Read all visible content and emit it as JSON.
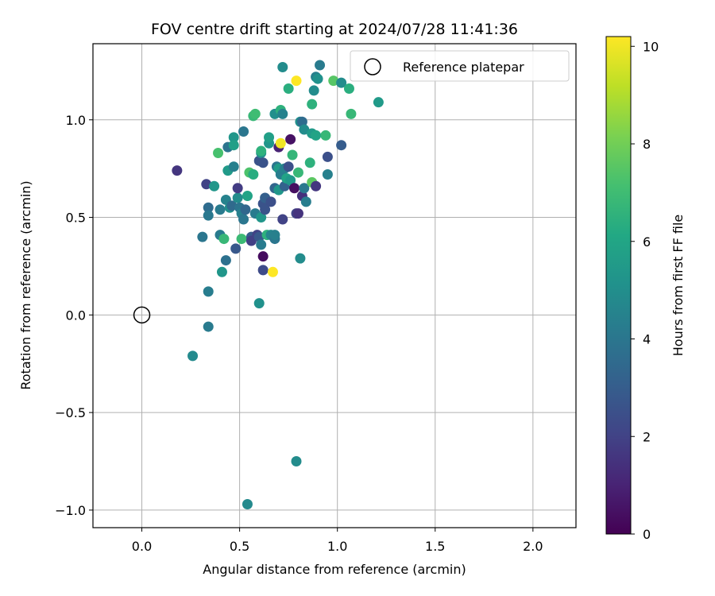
{
  "chart_data": {
    "type": "scatter",
    "title": "FOV centre drift starting at 2024/07/28 11:41:36",
    "xlabel": "Angular distance from reference (arcmin)",
    "ylabel": "Rotation from reference (arcmin)",
    "xlim": [
      -0.25,
      2.22
    ],
    "ylim": [
      -1.09,
      1.39
    ],
    "xticks": [
      0.0,
      0.5,
      1.0,
      1.5,
      2.0
    ],
    "xtick_labels": [
      "0.0",
      "0.5",
      "1.0",
      "1.5",
      "2.0"
    ],
    "yticks": [
      -1.0,
      -0.5,
      0.0,
      0.5,
      1.0
    ],
    "ytick_labels": [
      "−1.0",
      "−0.5",
      "0.0",
      "0.5",
      "1.0"
    ],
    "grid": true,
    "legend": {
      "placement": "top-right",
      "label": "Reference platepar"
    },
    "reference_point": {
      "x": 0.0,
      "y": 0.0
    },
    "colorbar": {
      "label": "Hours from first FF file",
      "range": [
        0,
        10.2
      ],
      "ticks": [
        0,
        2,
        4,
        6,
        8,
        10
      ],
      "colormap": "viridis"
    },
    "points": [
      [
        0.18,
        0.74,
        1.6
      ],
      [
        0.33,
        0.67,
        2.0
      ],
      [
        0.34,
        0.55,
        3.6
      ],
      [
        0.34,
        0.51,
        4.1
      ],
      [
        0.37,
        0.66,
        5.3
      ],
      [
        0.39,
        0.83,
        7.2
      ],
      [
        0.4,
        0.54,
        4.2
      ],
      [
        0.4,
        0.41,
        4.2
      ],
      [
        0.41,
        0.22,
        5.3
      ],
      [
        0.42,
        0.39,
        6.8
      ],
      [
        0.43,
        0.28,
        3.8
      ],
      [
        0.43,
        0.59,
        4.5
      ],
      [
        0.44,
        0.86,
        3.9
      ],
      [
        0.44,
        0.74,
        5.5
      ],
      [
        0.45,
        0.55,
        5.0
      ],
      [
        0.46,
        0.56,
        3.5
      ],
      [
        0.47,
        0.91,
        5.3
      ],
      [
        0.47,
        0.87,
        5.7
      ],
      [
        0.47,
        0.76,
        4.4
      ],
      [
        0.48,
        0.34,
        2.8
      ],
      [
        0.49,
        0.6,
        4.9
      ],
      [
        0.49,
        0.65,
        1.8
      ],
      [
        0.5,
        0.55,
        3.9
      ],
      [
        0.51,
        0.52,
        4.4
      ],
      [
        0.51,
        0.39,
        6.9
      ],
      [
        0.52,
        0.94,
        4.0
      ],
      [
        0.52,
        0.49,
        4.0
      ],
      [
        0.53,
        0.54,
        3.4
      ],
      [
        0.54,
        0.61,
        5.9
      ],
      [
        0.55,
        0.73,
        7.3
      ],
      [
        0.56,
        0.4,
        2.9
      ],
      [
        0.56,
        0.38,
        1.9
      ],
      [
        0.57,
        1.02,
        6.8
      ],
      [
        0.57,
        0.72,
        6.3
      ],
      [
        0.58,
        1.03,
        7.0
      ],
      [
        0.58,
        0.52,
        4.2
      ],
      [
        0.59,
        0.41,
        2.0
      ],
      [
        0.6,
        0.79,
        2.6
      ],
      [
        0.6,
        0.4,
        2.8
      ],
      [
        0.6,
        0.06,
        5.1
      ],
      [
        0.61,
        0.83,
        5.0
      ],
      [
        0.61,
        0.5,
        5.3
      ],
      [
        0.61,
        0.84,
        6.5
      ],
      [
        0.61,
        0.36,
        4.2
      ],
      [
        0.62,
        0.78,
        2.6
      ],
      [
        0.62,
        0.57,
        2.6
      ],
      [
        0.62,
        0.23,
        2.3
      ],
      [
        0.62,
        0.3,
        0.3
      ],
      [
        0.63,
        0.6,
        3.1
      ],
      [
        0.63,
        0.54,
        2.6
      ],
      [
        0.64,
        0.41,
        6.5
      ],
      [
        0.65,
        0.88,
        5.3
      ],
      [
        0.65,
        0.91,
        5.7
      ],
      [
        0.66,
        0.41,
        4.7
      ],
      [
        0.66,
        0.58,
        2.5
      ],
      [
        0.67,
        0.22,
        10.2
      ],
      [
        0.68,
        0.39,
        4.0
      ],
      [
        0.68,
        0.41,
        4.4
      ],
      [
        0.68,
        1.03,
        5.0
      ],
      [
        0.68,
        0.65,
        3.3
      ],
      [
        0.69,
        0.76,
        4.0
      ],
      [
        0.7,
        0.64,
        5.3
      ],
      [
        0.7,
        0.75,
        5.6
      ],
      [
        0.7,
        0.86,
        1.0
      ],
      [
        0.71,
        1.05,
        6.5
      ],
      [
        0.71,
        0.88,
        10.0
      ],
      [
        0.71,
        0.72,
        4.3
      ],
      [
        0.72,
        1.03,
        4.5
      ],
      [
        0.72,
        1.27,
        4.9
      ],
      [
        0.72,
        0.49,
        2.0
      ],
      [
        0.73,
        0.66,
        3.2
      ],
      [
        0.73,
        0.75,
        4.4
      ],
      [
        0.74,
        0.7,
        5.9
      ],
      [
        0.75,
        1.16,
        6.4
      ],
      [
        0.75,
        0.76,
        2.5
      ],
      [
        0.76,
        0.69,
        5.4
      ],
      [
        0.76,
        0.9,
        0.5
      ],
      [
        0.77,
        0.82,
        6.7
      ],
      [
        0.78,
        0.65,
        0.4
      ],
      [
        0.79,
        0.52,
        2.0
      ],
      [
        0.79,
        1.2,
        10.2
      ],
      [
        0.79,
        -0.75,
        4.9
      ],
      [
        0.8,
        0.73,
        6.8
      ],
      [
        0.8,
        0.52,
        1.5
      ],
      [
        0.81,
        0.29,
        4.9
      ],
      [
        0.81,
        0.99,
        5.0
      ],
      [
        0.82,
        0.61,
        1.4
      ],
      [
        0.82,
        0.99,
        3.6
      ],
      [
        0.83,
        0.95,
        4.9
      ],
      [
        0.83,
        0.65,
        4.1
      ],
      [
        0.84,
        0.58,
        4.3
      ],
      [
        0.86,
        0.78,
        6.5
      ],
      [
        0.87,
        1.08,
        6.5
      ],
      [
        0.87,
        0.68,
        7.6
      ],
      [
        0.87,
        0.93,
        5.5
      ],
      [
        0.88,
        1.15,
        4.9
      ],
      [
        0.89,
        0.66,
        1.6
      ],
      [
        0.89,
        1.22,
        4.4
      ],
      [
        0.89,
        0.92,
        5.9
      ],
      [
        0.9,
        1.21,
        5.1
      ],
      [
        0.91,
        1.28,
        4.2
      ],
      [
        0.94,
        0.92,
        6.8
      ],
      [
        0.95,
        0.72,
        4.4
      ],
      [
        0.95,
        0.81,
        2.5
      ],
      [
        0.98,
        1.2,
        7.5
      ],
      [
        1.02,
        1.19,
        4.9
      ],
      [
        1.02,
        0.87,
        3.0
      ],
      [
        1.06,
        1.16,
        6.4
      ],
      [
        1.07,
        1.03,
        6.8
      ],
      [
        1.21,
        1.09,
        5.5
      ],
      [
        0.34,
        0.12,
        4.3
      ],
      [
        0.34,
        -0.06,
        4.2
      ],
      [
        0.31,
        0.4,
        4.0
      ],
      [
        0.26,
        -0.21,
        4.8
      ],
      [
        0.54,
        -0.97,
        4.8
      ]
    ]
  }
}
